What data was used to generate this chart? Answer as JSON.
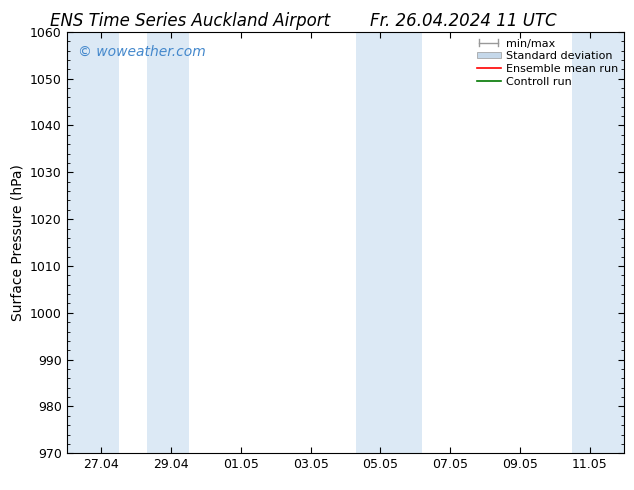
{
  "title_left": "ENS Time Series Auckland Airport",
  "title_right": "Fr. 26.04.2024 11 UTC",
  "ylabel": "Surface Pressure (hPa)",
  "ylim": [
    970,
    1060
  ],
  "yticks": [
    970,
    980,
    990,
    1000,
    1010,
    1020,
    1030,
    1040,
    1050,
    1060
  ],
  "x_tick_labels": [
    "27.04",
    "29.04",
    "01.05",
    "03.05",
    "05.05",
    "07.05",
    "09.05",
    "11.05"
  ],
  "x_tick_positions": [
    1,
    3,
    5,
    7,
    9,
    11,
    13,
    15
  ],
  "x_lim": [
    0,
    16
  ],
  "shaded_bands": [
    {
      "x_start": 0.0,
      "x_end": 1.5
    },
    {
      "x_start": 2.3,
      "x_end": 3.5
    },
    {
      "x_start": 8.3,
      "x_end": 9.5
    },
    {
      "x_start": 9.5,
      "x_end": 10.2
    },
    {
      "x_start": 14.5,
      "x_end": 16.0
    }
  ],
  "shade_color": "#dce9f5",
  "watermark": "© woweather.com",
  "watermark_color": "#4488cc",
  "background_color": "#ffffff",
  "legend_items": [
    {
      "label": "min/max",
      "color": "#aaaaaa"
    },
    {
      "label": "Standard deviation",
      "color": "#c5d8ea"
    },
    {
      "label": "Ensemble mean run",
      "color": "#ff0000"
    },
    {
      "label": "Controll run",
      "color": "#007700"
    }
  ],
  "title_fontsize": 12,
  "tick_fontsize": 9,
  "ylabel_fontsize": 10,
  "legend_fontsize": 8,
  "watermark_fontsize": 10
}
